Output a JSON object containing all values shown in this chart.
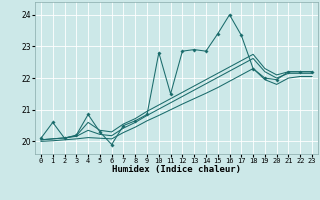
{
  "xlabel": "Humidex (Indice chaleur)",
  "bg_color": "#cce8e8",
  "line_color": "#1a6b6b",
  "grid_color": "#ffffff",
  "figsize": [
    3.2,
    2.0
  ],
  "dpi": 100,
  "xlim": [
    -0.5,
    23.5
  ],
  "ylim": [
    19.6,
    24.4
  ],
  "yticks": [
    20,
    21,
    22,
    23,
    24
  ],
  "xtick_labels": [
    "0",
    "1",
    "2",
    "3",
    "4",
    "5",
    "6",
    "7",
    "8",
    "9",
    "10",
    "11",
    "12",
    "13",
    "14",
    "15",
    "16",
    "17",
    "18",
    "19",
    "20",
    "21",
    "22",
    "23"
  ],
  "jagged": [
    20.1,
    20.6,
    20.1,
    20.2,
    20.85,
    20.3,
    19.9,
    20.5,
    20.65,
    20.85,
    22.8,
    21.5,
    22.85,
    22.9,
    22.85,
    23.4,
    24.0,
    23.35,
    22.3,
    22.0,
    21.95,
    22.2,
    22.2,
    22.2
  ],
  "trend_high": [
    20.05,
    20.08,
    20.11,
    20.18,
    20.6,
    20.35,
    20.3,
    20.55,
    20.72,
    20.95,
    21.15,
    21.35,
    21.55,
    21.75,
    21.95,
    22.15,
    22.35,
    22.55,
    22.75,
    22.3,
    22.1,
    22.2,
    22.2,
    22.2
  ],
  "trend_mid": [
    20.05,
    20.08,
    20.11,
    20.16,
    20.35,
    20.22,
    20.18,
    20.42,
    20.6,
    20.82,
    21.02,
    21.22,
    21.42,
    21.62,
    21.82,
    22.02,
    22.22,
    22.42,
    22.62,
    22.2,
    22.0,
    22.15,
    22.15,
    22.15
  ],
  "trend_low": [
    20.0,
    20.02,
    20.05,
    20.08,
    20.12,
    20.1,
    20.08,
    20.28,
    20.45,
    20.65,
    20.82,
    21.0,
    21.18,
    21.35,
    21.52,
    21.7,
    21.9,
    22.1,
    22.3,
    21.95,
    21.8,
    22.0,
    22.05,
    22.05
  ]
}
